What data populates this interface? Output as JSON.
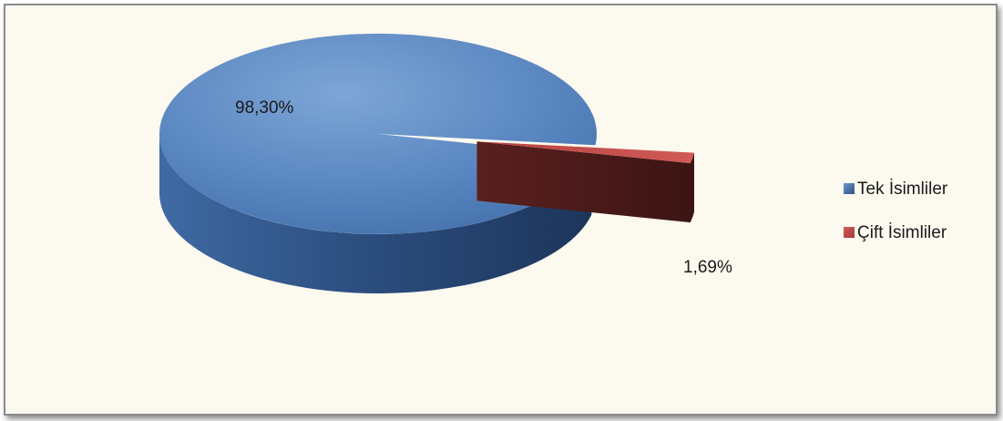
{
  "chart_data": {
    "type": "pie",
    "style": "3d-exploded",
    "slices": [
      {
        "label": "Tek İsimliler",
        "value": 98.3,
        "value_label": "98,30%",
        "color": "#4f81bd"
      },
      {
        "label": "Çift İsimliler",
        "value": 1.69,
        "value_label": "1,69%",
        "color": "#c0504d"
      }
    ],
    "legend": {
      "position": "right"
    }
  }
}
